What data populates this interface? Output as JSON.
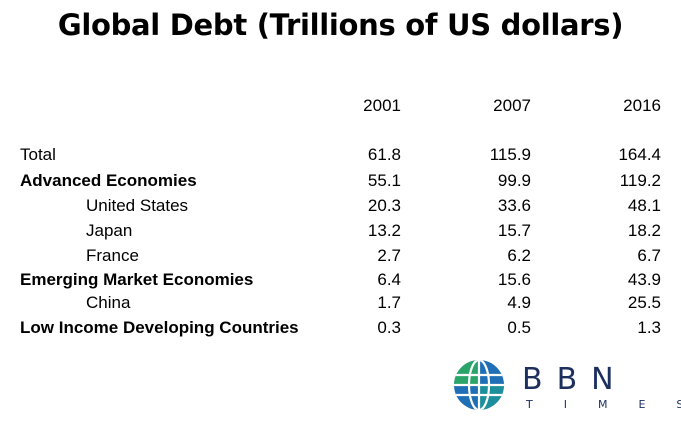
{
  "chart_data": {
    "type": "table",
    "title": "Global Debt (Trillions of US dollars)",
    "columns": [
      "2001",
      "2007",
      "2016"
    ],
    "rows": [
      {
        "label": "Total",
        "values": [
          "61.8",
          "115.9",
          "164.4"
        ],
        "bold": false,
        "indent": false
      },
      {
        "label": "Advanced Economies",
        "values": [
          "55.1",
          "99.9",
          "119.2"
        ],
        "bold": true,
        "indent": false
      },
      {
        "label": "United States",
        "values": [
          "20.3",
          "33.6",
          "48.1"
        ],
        "bold": false,
        "indent": true
      },
      {
        "label": "Japan",
        "values": [
          "13.2",
          "15.7",
          "18.2"
        ],
        "bold": false,
        "indent": true
      },
      {
        "label": "France",
        "values": [
          "2.7",
          "6.2",
          "6.7"
        ],
        "bold": false,
        "indent": true
      },
      {
        "label": "Emerging Market Economies",
        "values": [
          "6.4",
          "15.6",
          "43.9"
        ],
        "bold": true,
        "indent": false
      },
      {
        "label": "China",
        "values": [
          "1.7",
          "4.9",
          "25.5"
        ],
        "bold": false,
        "indent": true
      },
      {
        "label": "Low Income Developing Countries",
        "values": [
          "0.3",
          "0.5",
          "1.3"
        ],
        "bold": true,
        "indent": false
      }
    ]
  },
  "logo": {
    "text": "BBN",
    "subtext": "TIMES",
    "colors": {
      "globe_blue": "#1e6fb5",
      "globe_green": "#2aa56a",
      "text": "#1c2f5e"
    },
    "icon": "globe-icon"
  }
}
